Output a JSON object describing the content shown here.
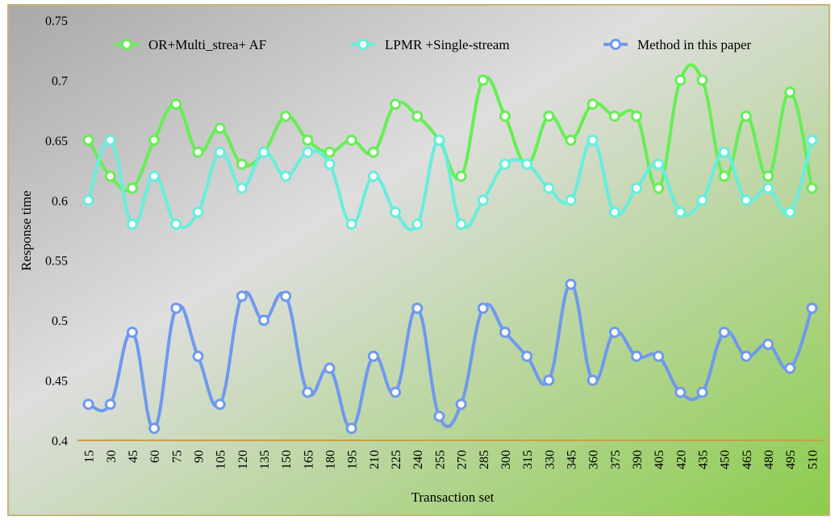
{
  "chart_data": {
    "type": "line",
    "xlabel": "Transaction set",
    "ylabel": "Response time",
    "ylim": [
      0.4,
      0.75
    ],
    "yticks": [
      "0.4",
      "0.45",
      "0.5",
      "0.55",
      "0.6",
      "0.65",
      "0.7",
      "0.75"
    ],
    "categories": [
      "15",
      "30",
      "45",
      "60",
      "75",
      "90",
      "105",
      "120",
      "135",
      "150",
      "165",
      "180",
      "195",
      "210",
      "225",
      "240",
      "255",
      "270",
      "285",
      "300",
      "315",
      "330",
      "345",
      "360",
      "375",
      "390",
      "405",
      "420",
      "435",
      "450",
      "465",
      "480",
      "495",
      "510"
    ],
    "legend_position": "top",
    "grid": false,
    "series": [
      {
        "name": "OR+Multi_strea+ AF",
        "color": "#66ee55",
        "values": [
          0.65,
          0.62,
          0.61,
          0.65,
          0.68,
          0.64,
          0.66,
          0.63,
          0.64,
          0.67,
          0.65,
          0.64,
          0.65,
          0.64,
          0.68,
          0.67,
          0.65,
          0.62,
          0.7,
          0.67,
          0.63,
          0.67,
          0.65,
          0.68,
          0.67,
          0.67,
          0.61,
          0.7,
          0.7,
          0.62,
          0.67,
          0.62,
          0.69,
          0.61
        ]
      },
      {
        "name": "LPMR +Single-stream",
        "color": "#66eedd",
        "values": [
          0.6,
          0.65,
          0.58,
          0.62,
          0.58,
          0.59,
          0.64,
          0.61,
          0.64,
          0.62,
          0.64,
          0.63,
          0.58,
          0.62,
          0.59,
          0.58,
          0.65,
          0.58,
          0.6,
          0.63,
          0.63,
          0.61,
          0.6,
          0.65,
          0.59,
          0.61,
          0.63,
          0.59,
          0.6,
          0.64,
          0.6,
          0.61,
          0.59,
          0.65
        ]
      },
      {
        "name": "Method in this paper",
        "color": "#6f99ee",
        "values": [
          0.43,
          0.43,
          0.49,
          0.41,
          0.51,
          0.47,
          0.43,
          0.52,
          0.5,
          0.52,
          0.44,
          0.46,
          0.41,
          0.47,
          0.44,
          0.51,
          0.42,
          0.43,
          0.51,
          0.49,
          0.47,
          0.45,
          0.53,
          0.45,
          0.49,
          0.47,
          0.47,
          0.44,
          0.44,
          0.49,
          0.47,
          0.48,
          0.46,
          0.51
        ]
      }
    ],
    "background": {
      "start": "#a8a8a8",
      "mid": "#dedede",
      "end": "#8ccc4c"
    },
    "frame_color": "#c8b47a",
    "axis_color": "#c8a040"
  }
}
